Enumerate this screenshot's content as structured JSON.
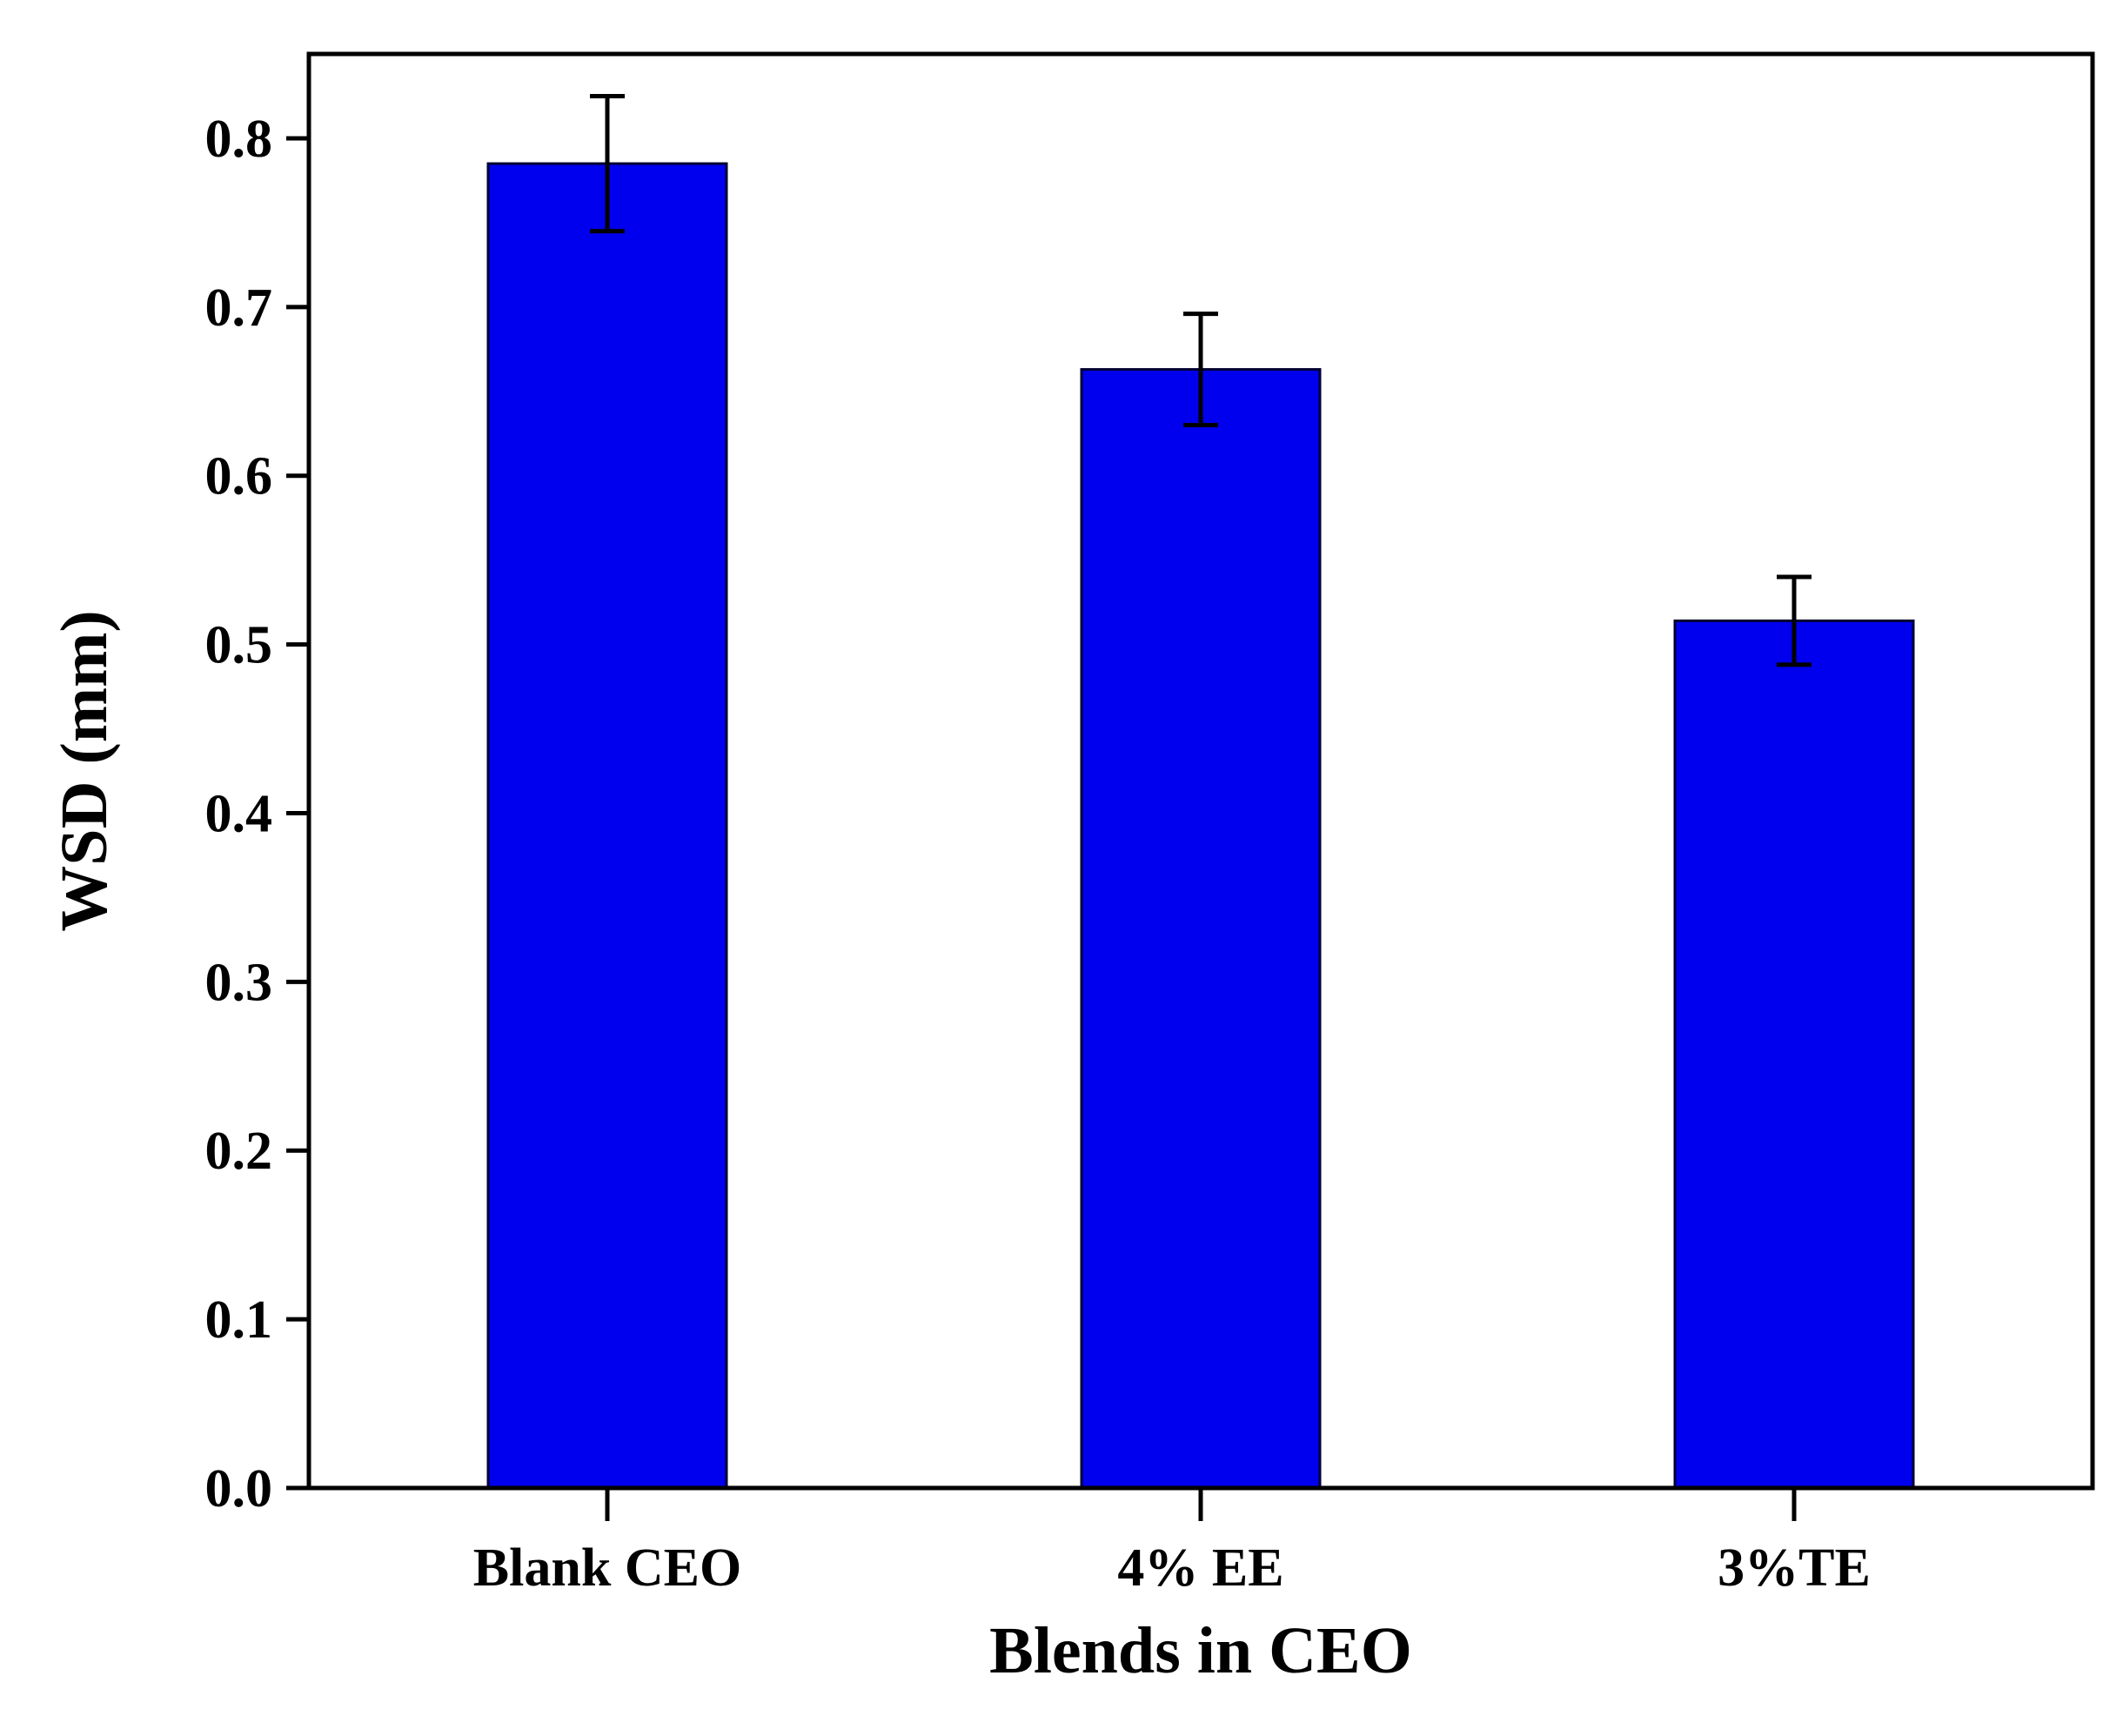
{
  "chart_data": {
    "type": "bar",
    "categories": [
      "Blank CEO",
      "4% EE",
      "3%TE"
    ],
    "values": [
      0.785,
      0.663,
      0.514
    ],
    "errors": [
      0.04,
      0.033,
      0.026
    ],
    "title": "",
    "xlabel": "Blends in CEO",
    "ylabel": "WSD (mm)",
    "ylim": [
      0.0,
      0.85
    ],
    "yticks": [
      "0.0",
      "0.1",
      "0.2",
      "0.3",
      "0.4",
      "0.5",
      "0.6",
      "0.7",
      "0.8"
    ],
    "ytick_values": [
      0.0,
      0.1,
      0.2,
      0.3,
      0.4,
      0.5,
      0.6,
      0.7,
      0.8
    ],
    "grid": false,
    "legend": "none",
    "colors": {
      "bar_fill": "#0000ee",
      "bar_stroke": "#000033",
      "axis": "#000000"
    }
  }
}
